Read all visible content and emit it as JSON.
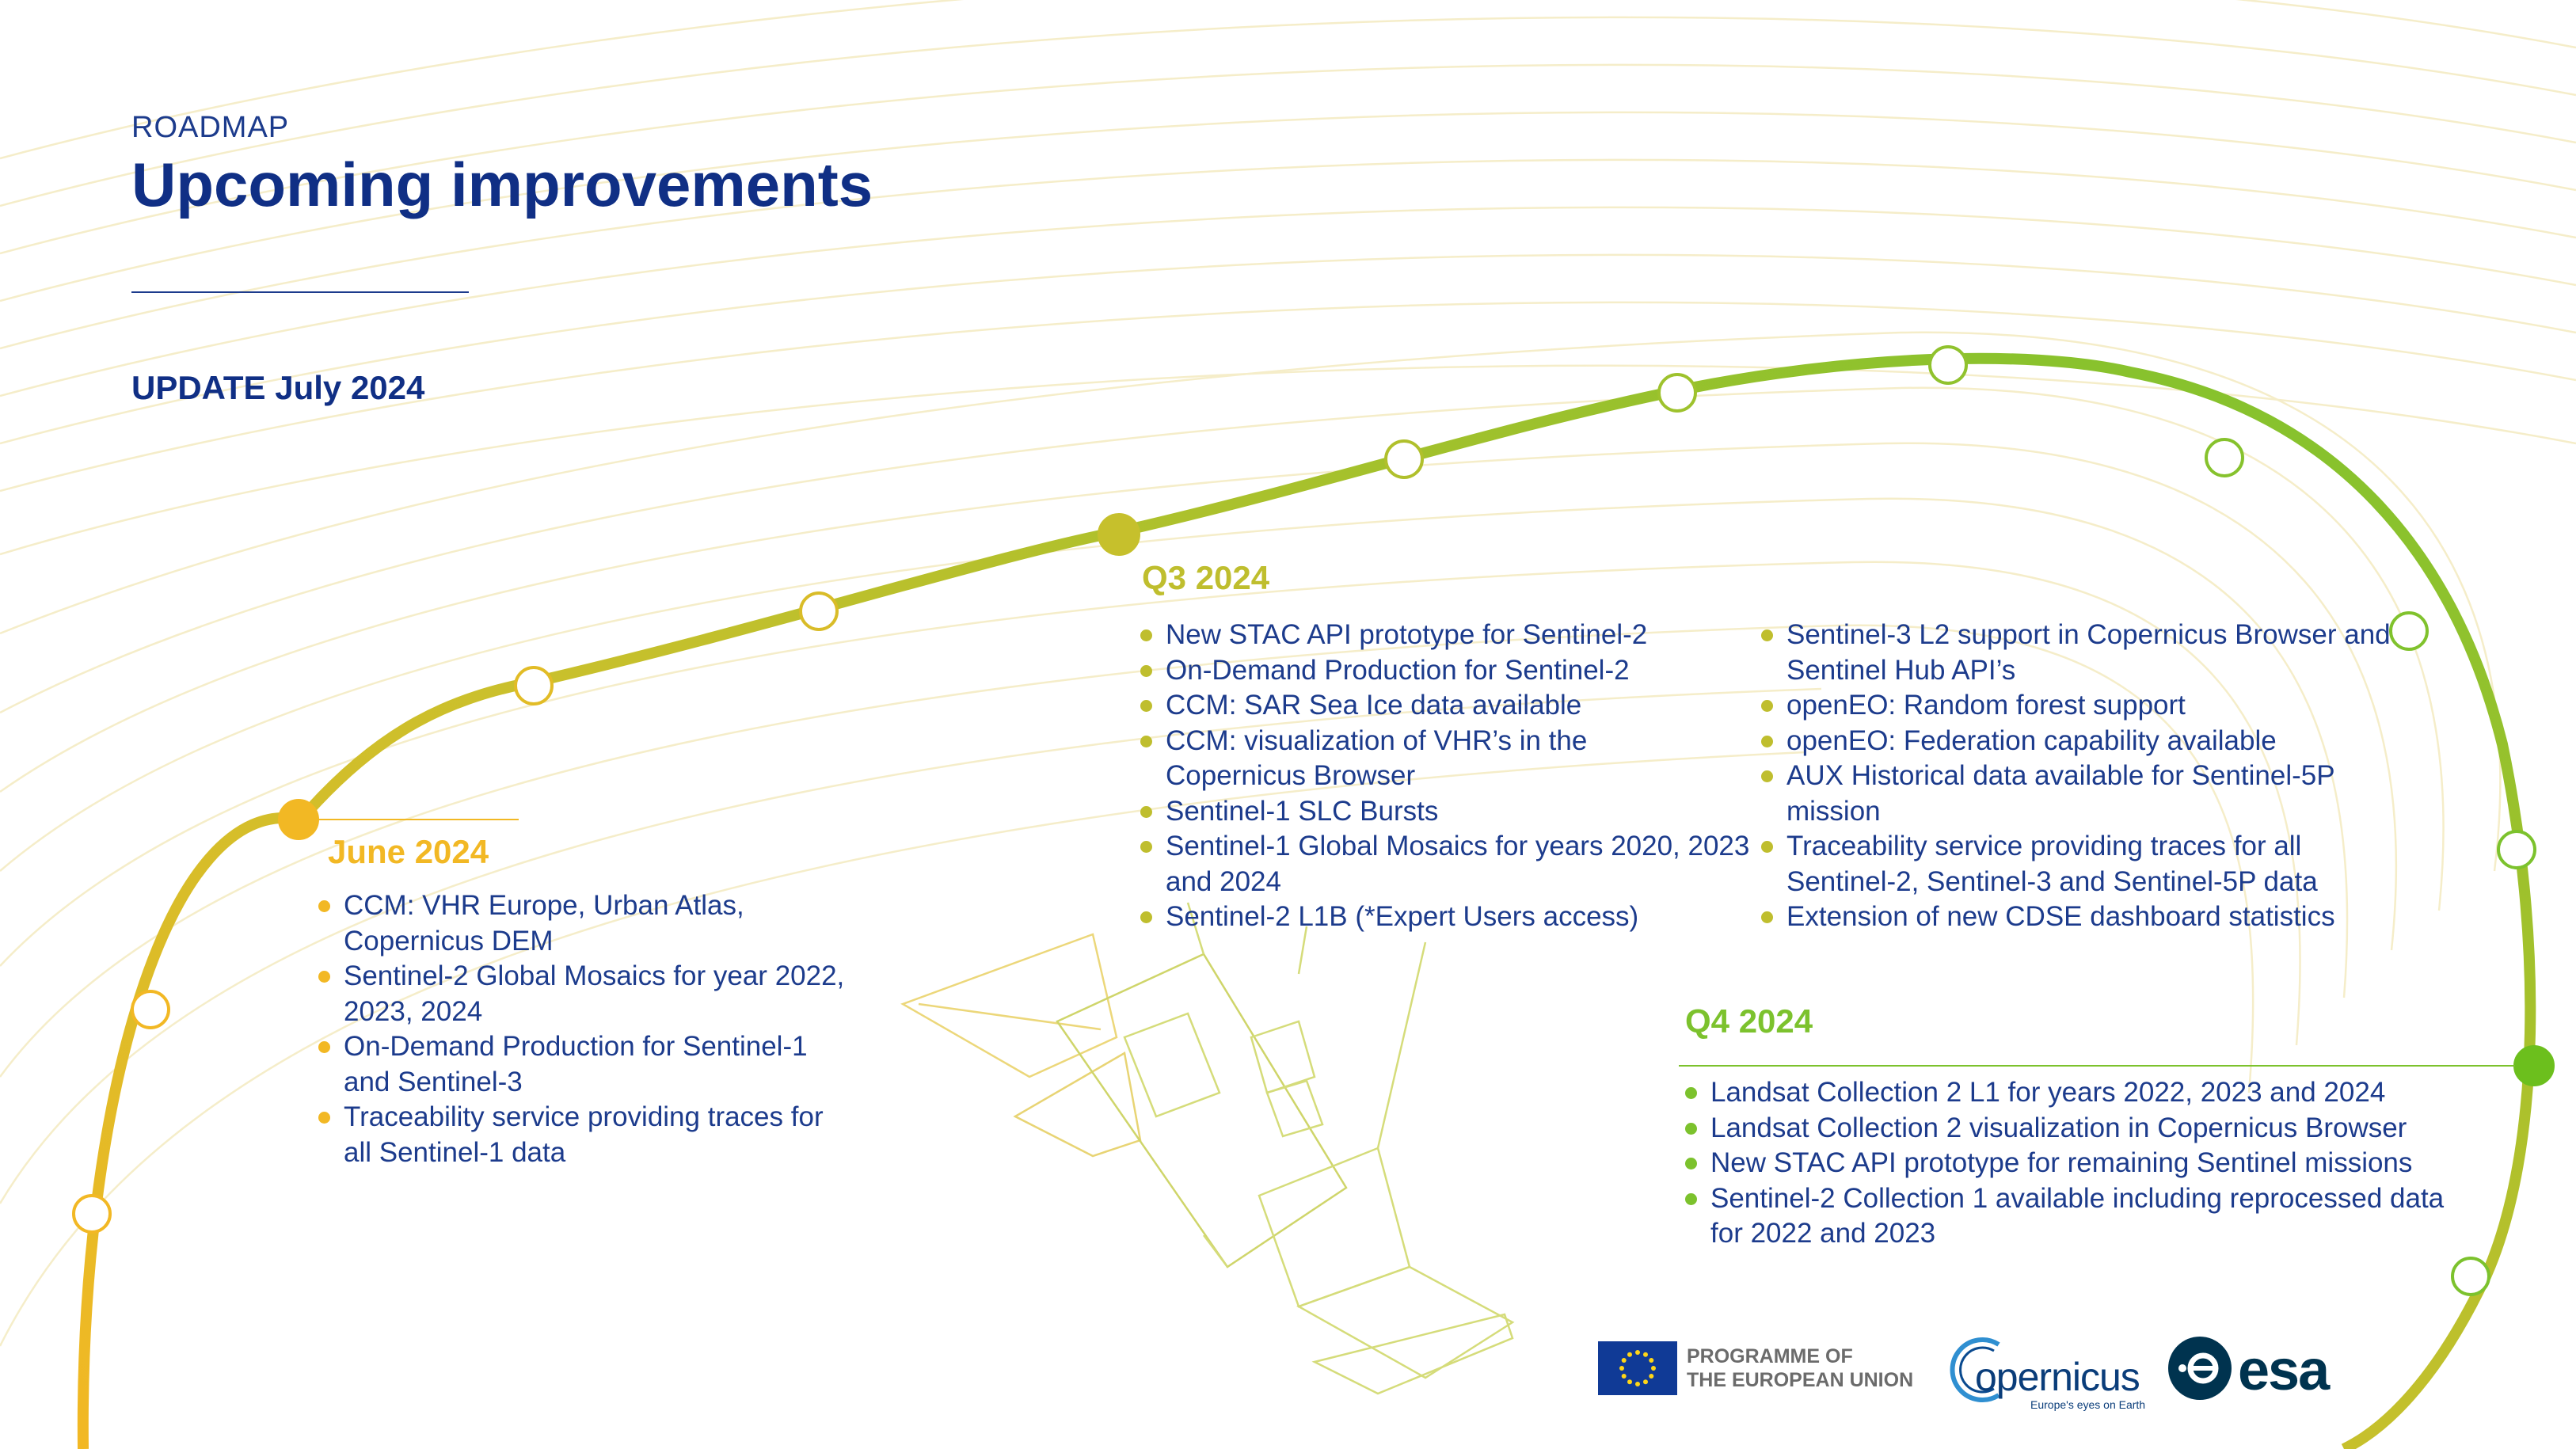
{
  "header": {
    "kicker": "ROADMAP",
    "title": "Upcoming improvements",
    "update": "UPDATE July 2024"
  },
  "colors": {
    "navy": "#102f85",
    "june": "#f2b824",
    "q3": "#bfbe2e",
    "q4": "#7cc22d"
  },
  "milestones": {
    "june": {
      "label": "June 2024",
      "items": [
        "CCM: VHR Europe, Urban Atlas, Copernicus DEM",
        "Sentinel-2 Global Mosaics for year 2022, 2023, 2024",
        "On-Demand Production for Sentinel-1 and Sentinel-3",
        "Traceability service providing traces for all Sentinel-1 data"
      ]
    },
    "q3": {
      "label": "Q3 2024",
      "items_left": [
        "New STAC API prototype for Sentinel-2",
        "On-Demand Production for Sentinel-2",
        "CCM: SAR Sea Ice data available",
        "CCM: visualization of VHR’s in the Copernicus Browser",
        "Sentinel-1 SLC Bursts",
        "Sentinel-1 Global Mosaics for years 2020, 2023 and 2024",
        "Sentinel-2 L1B (*Expert Users access)"
      ],
      "items_right": [
        "Sentinel-3 L2 support in Copernicus Browser and Sentinel Hub API’s",
        "openEO: Random forest support",
        "openEO: Federation capability available",
        "AUX Historical data available for Sentinel-5P mission",
        "Traceability service providing traces for all Sentinel-2, Sentinel-3 and Sentinel-5P data",
        "Extension of new CDSE dashboard statistics"
      ]
    },
    "q4": {
      "label": "Q4 2024",
      "items": [
        "Landsat Collection 2 L1 for years 2022, 2023 and 2024",
        "Landsat Collection 2 visualization in Copernicus Browser",
        "New STAC API prototype for remaining Sentinel missions",
        "Sentinel-2 Collection 1 available including reprocessed data for 2022 and 2023"
      ]
    }
  },
  "footer": {
    "eu_line1": "PROGRAMME OF",
    "eu_line2": "THE EUROPEAN UNION",
    "copernicus_name": "opernicus",
    "copernicus_tagline": "Europe's eyes on Earth",
    "esa_name": "esa"
  }
}
